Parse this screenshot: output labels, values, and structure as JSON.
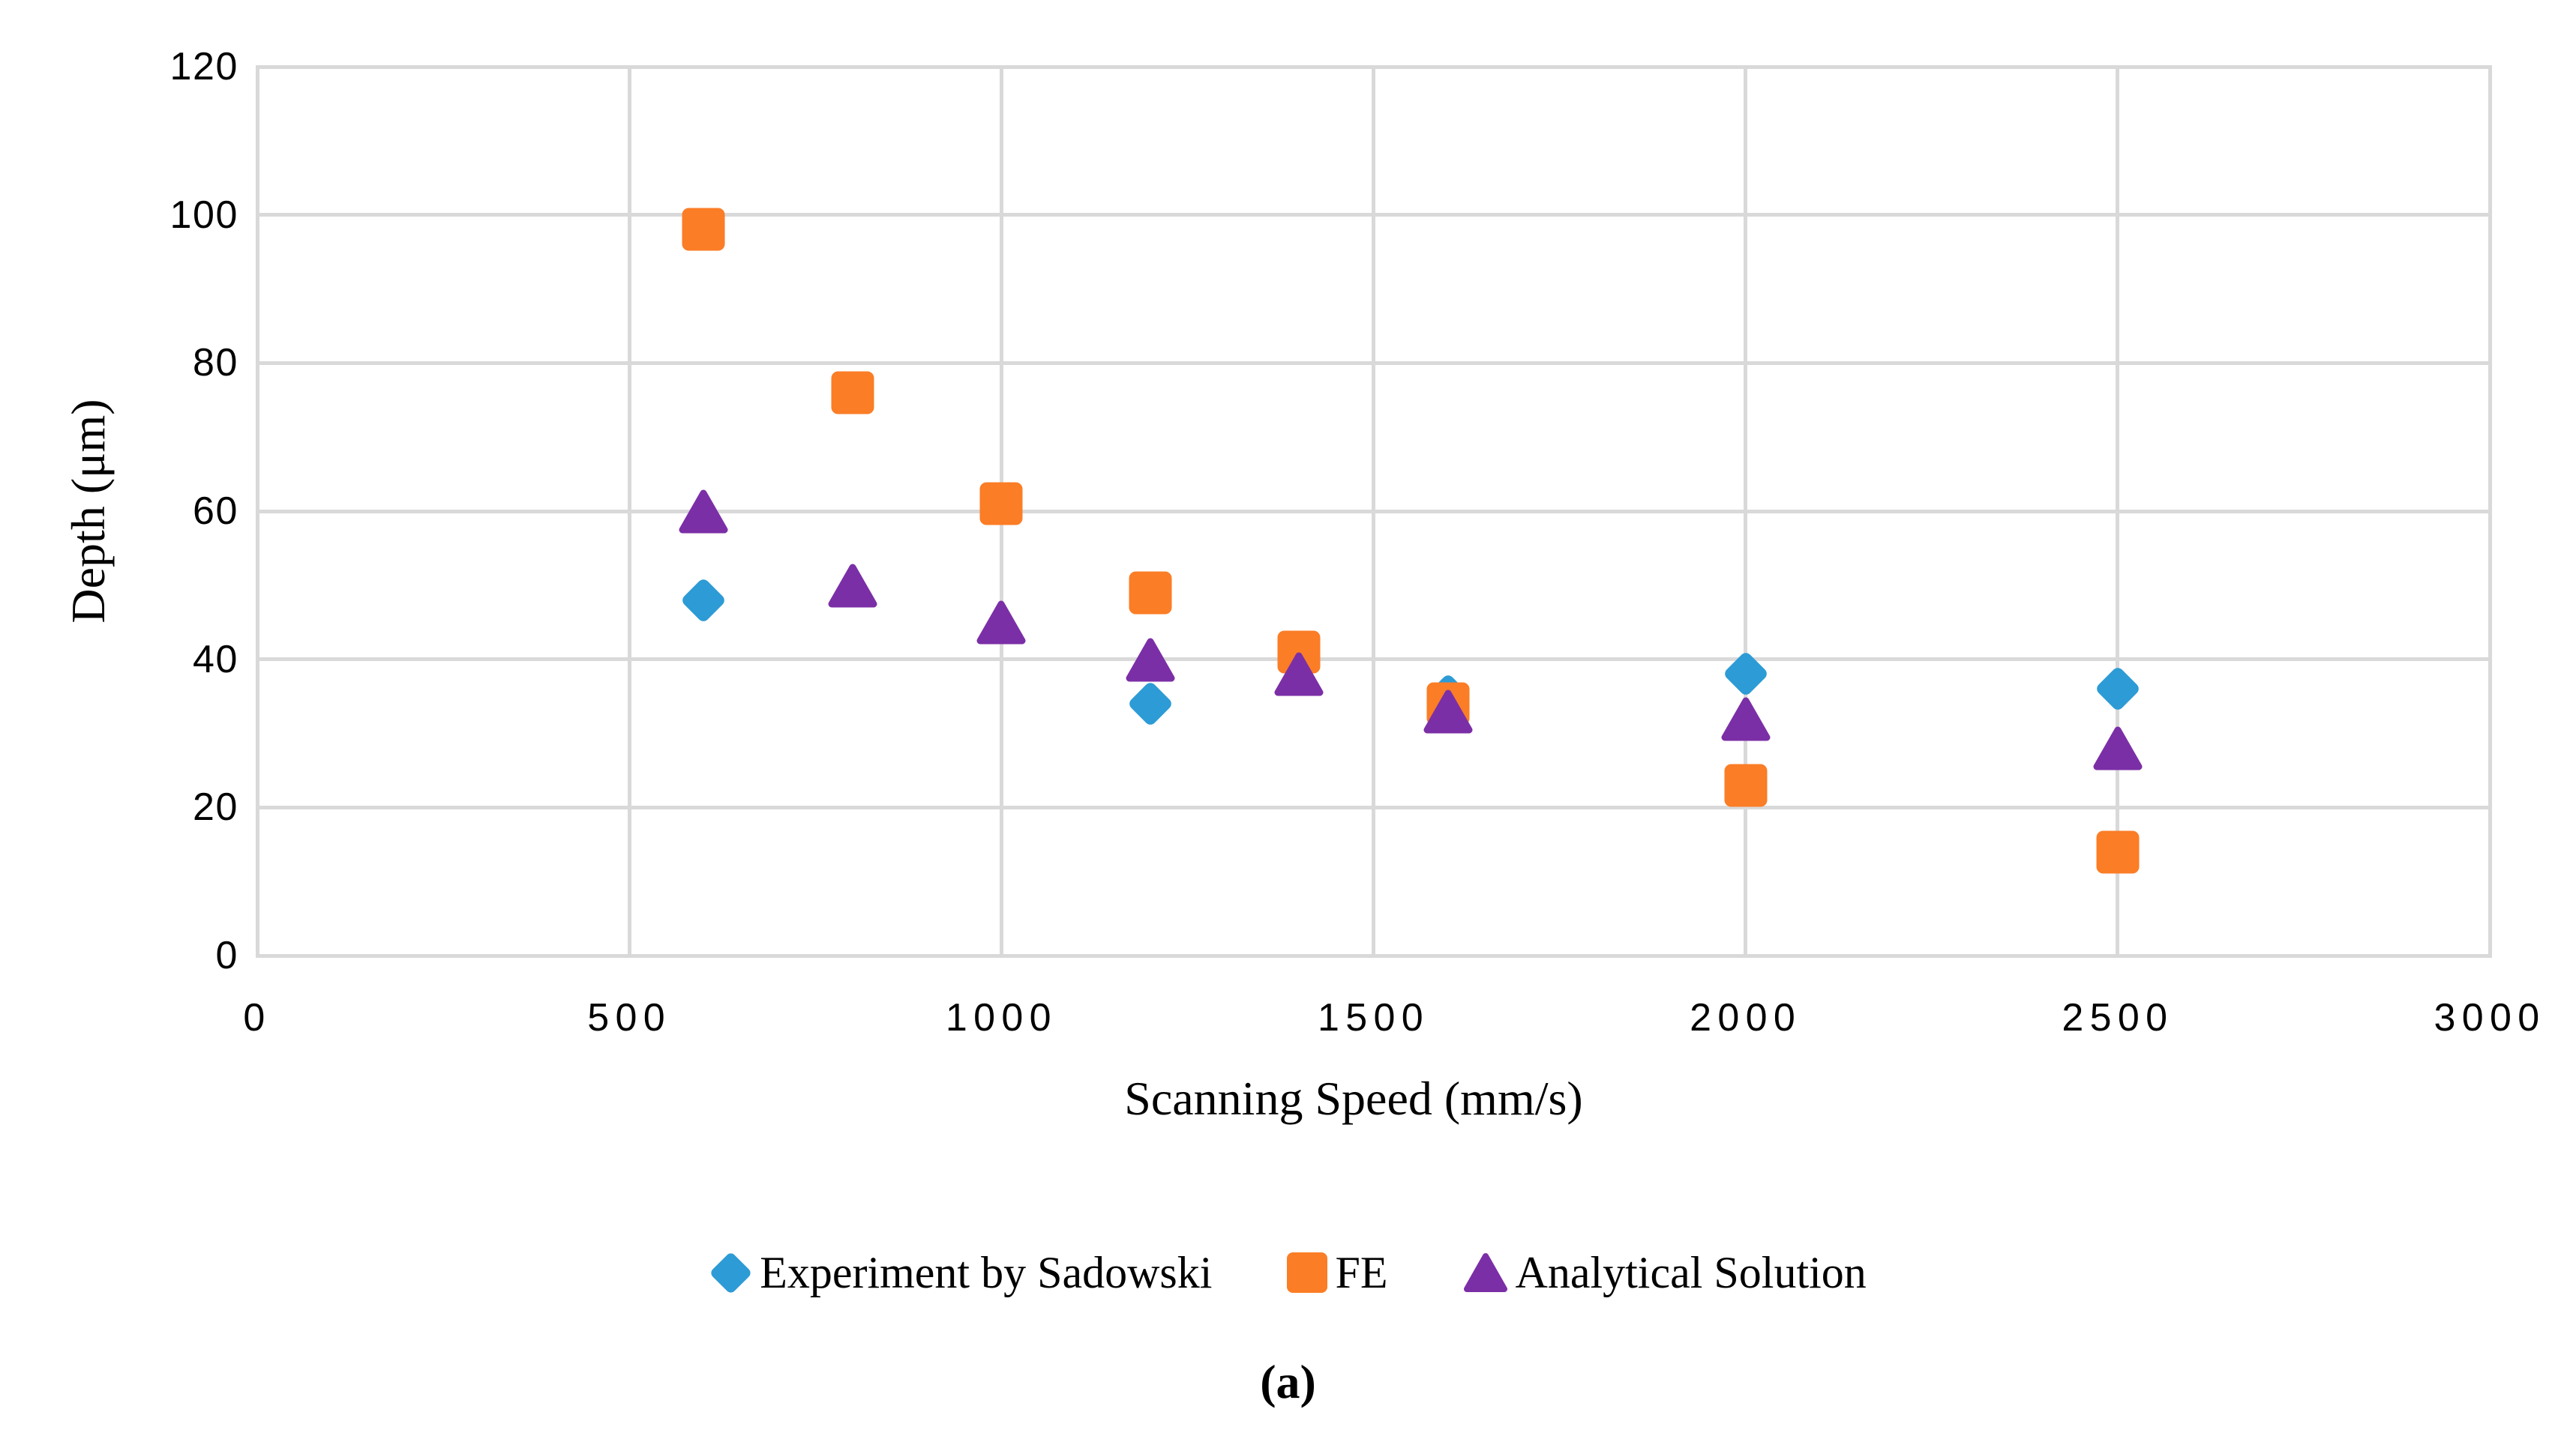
{
  "figure": {
    "caption": "(a)"
  },
  "chart_data": {
    "type": "scatter",
    "title": "",
    "xlabel": "Scanning Speed (mm/s)",
    "ylabel": "Depth (μm)",
    "xlim": [
      0,
      3000
    ],
    "ylim": [
      0,
      120
    ],
    "x_ticks": [
      0,
      500,
      1000,
      1500,
      2000,
      2500,
      3000
    ],
    "y_ticks": [
      0,
      20,
      40,
      60,
      80,
      100,
      120
    ],
    "grid": true,
    "grid_color": "#D9D9D9",
    "legend_position": "bottom",
    "series": [
      {
        "name": "Experiment by Sadowski",
        "marker": "diamond",
        "color": "#2D9BD5",
        "points": [
          [
            600,
            48
          ],
          [
            1200,
            34
          ],
          [
            1600,
            35
          ],
          [
            2000,
            38
          ],
          [
            2500,
            36
          ]
        ]
      },
      {
        "name": "FE",
        "marker": "square",
        "color": "#FB7D26",
        "points": [
          [
            600,
            98
          ],
          [
            800,
            76
          ],
          [
            1000,
            61
          ],
          [
            1200,
            49
          ],
          [
            1400,
            41
          ],
          [
            1600,
            34
          ],
          [
            2000,
            23
          ],
          [
            2500,
            14
          ]
        ]
      },
      {
        "name": "Analytical Solution",
        "marker": "triangle",
        "color": "#7B2FA6",
        "points": [
          [
            600,
            60
          ],
          [
            800,
            50
          ],
          [
            1000,
            45
          ],
          [
            1200,
            40
          ],
          [
            1400,
            38
          ],
          [
            1600,
            33
          ],
          [
            2000,
            32
          ],
          [
            2500,
            28
          ]
        ]
      }
    ]
  }
}
